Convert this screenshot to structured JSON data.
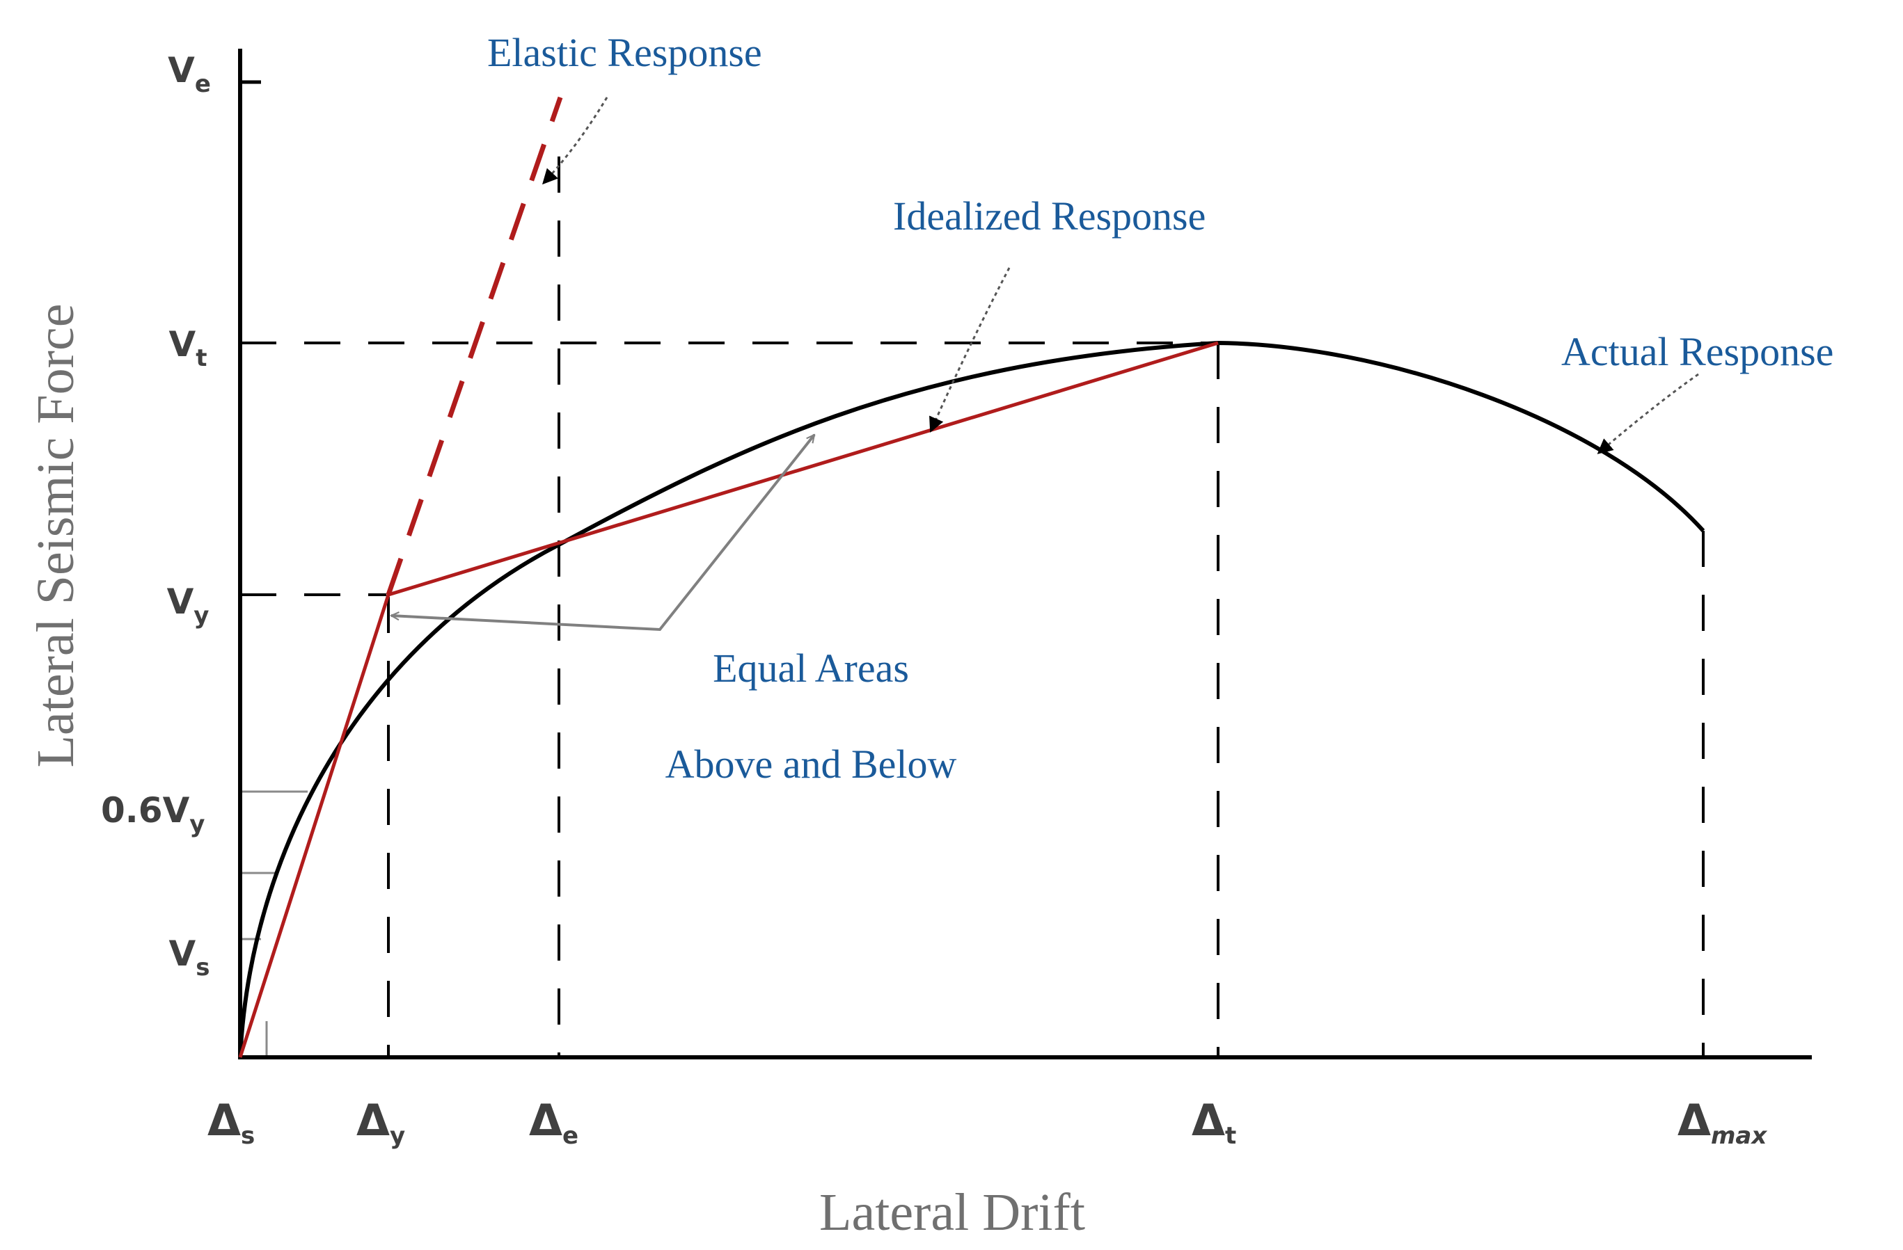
{
  "x_axis": {
    "title": "Lateral Drift",
    "ticks": [
      {
        "id": "ds",
        "sym": "Δ",
        "sub": "s",
        "sub_italic": false
      },
      {
        "id": "dy",
        "sym": "Δ",
        "sub": "y",
        "sub_italic": false
      },
      {
        "id": "de",
        "sym": "Δ",
        "sub": "e",
        "sub_italic": false
      },
      {
        "id": "dt",
        "sym": "Δ",
        "sub": "t",
        "sub_italic": false
      },
      {
        "id": "dmax",
        "sym": "Δ",
        "sub": "max",
        "sub_italic": true
      }
    ]
  },
  "y_axis": {
    "title": "Lateral Seismic Force",
    "ticks": [
      {
        "id": "ve",
        "main": "V",
        "sub": "e"
      },
      {
        "id": "vt",
        "main": "V",
        "sub": "t"
      },
      {
        "id": "vy",
        "main": "V",
        "sub": "y"
      },
      {
        "id": "v06y",
        "main": "0.6V",
        "sub": "y"
      },
      {
        "id": "vs",
        "main": "V",
        "sub": "s"
      }
    ]
  },
  "annotations": {
    "elastic": "Elastic Response",
    "idealized": "Idealized Response",
    "actual": "Actual Response",
    "equal_areas_line1": "Equal Areas",
    "equal_areas_line2": "Above and Below"
  },
  "colors": {
    "axis": "#000000",
    "actual_curve": "#000000",
    "idealized_line": "#b01c1c",
    "elastic_line": "#b01c1c",
    "guide_dashes": "#000000",
    "equal_area_arrows": "#808080",
    "annotation_text": "#1a5a9a",
    "axis_title_text": "#707070",
    "tick_text": "#404040"
  }
}
